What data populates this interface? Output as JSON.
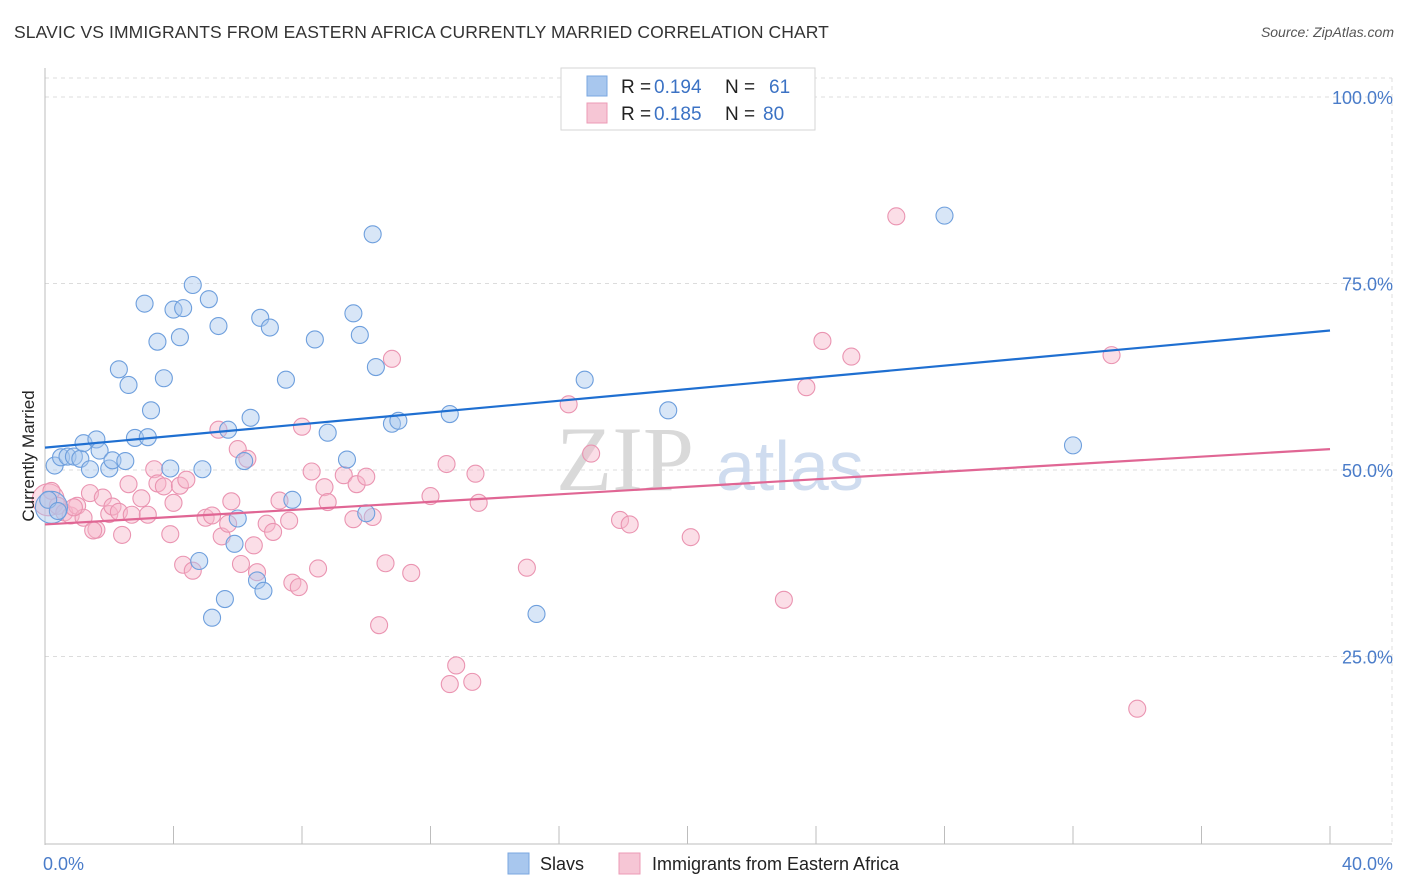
{
  "title": "SLAVIC VS IMMIGRANTS FROM EASTERN AFRICA CURRENTLY MARRIED CORRELATION CHART",
  "source": "Source: ZipAtlas.com",
  "watermark": {
    "zip": "ZIP",
    "atlas": "atlas"
  },
  "colors": {
    "blue": "#1f6fd1",
    "blue_fill": "#a8c7ee",
    "pink": "#e06694",
    "pink_fill": "#f6b6c9",
    "grid": "#dcdcdc",
    "tick_text": "#4a7cc9"
  },
  "legend": {
    "rows": [
      {
        "r_label": "R =",
        "r_value": "0.194",
        "n_label": "N =",
        "n_value": "61",
        "color": "blue"
      },
      {
        "r_label": "R =",
        "r_value": "0.185",
        "n_label": "N =",
        "n_value": "80",
        "color": "pink"
      }
    ]
  },
  "bottom_legend": [
    {
      "label": "Slavs",
      "color": "blue"
    },
    {
      "label": "Immigrants from Eastern Africa",
      "color": "pink"
    }
  ],
  "chart_data": {
    "type": "scatter",
    "title": "SLAVIC VS IMMIGRANTS FROM EASTERN AFRICA CURRENTLY MARRIED CORRELATION CHART",
    "xlabel": "",
    "ylabel": "Currently Married",
    "xlim": [
      0,
      40
    ],
    "ylim": [
      0,
      105
    ],
    "x_tick_labels": [
      "0.0%",
      "40.0%"
    ],
    "y_ticks": [
      25,
      50,
      75,
      100
    ],
    "y_tick_labels": [
      "25.0%",
      "50.0%",
      "75.0%",
      "100.0%"
    ],
    "grid": true,
    "series": [
      {
        "name": "Slavs",
        "color": "blue",
        "trend": [
          [
            0,
            53.0
          ],
          [
            40,
            68.7
          ]
        ],
        "points": [
          [
            0.2,
            45.0
          ],
          [
            0.3,
            50.6
          ],
          [
            0.5,
            51.7
          ],
          [
            0.7,
            51.8
          ],
          [
            0.9,
            51.8
          ],
          [
            1.1,
            51.5
          ],
          [
            1.2,
            53.6
          ],
          [
            1.4,
            50.1
          ],
          [
            1.6,
            54.1
          ],
          [
            1.7,
            52.6
          ],
          [
            2.0,
            50.2
          ],
          [
            2.1,
            51.3
          ],
          [
            2.3,
            63.5
          ],
          [
            2.5,
            51.2
          ],
          [
            2.6,
            61.4
          ],
          [
            2.8,
            54.3
          ],
          [
            3.1,
            72.3
          ],
          [
            3.2,
            54.4
          ],
          [
            3.3,
            58.0
          ],
          [
            3.5,
            67.2
          ],
          [
            3.7,
            62.3
          ],
          [
            3.9,
            50.2
          ],
          [
            4.0,
            71.5
          ],
          [
            4.3,
            71.7
          ],
          [
            4.2,
            67.8
          ],
          [
            4.6,
            74.8
          ],
          [
            4.8,
            37.8
          ],
          [
            4.9,
            50.1
          ],
          [
            5.1,
            72.9
          ],
          [
            5.2,
            30.2
          ],
          [
            5.4,
            69.3
          ],
          [
            5.6,
            32.7
          ],
          [
            5.7,
            55.4
          ],
          [
            5.9,
            40.1
          ],
          [
            6.0,
            43.5
          ],
          [
            6.2,
            51.2
          ],
          [
            6.4,
            57.0
          ],
          [
            6.6,
            35.2
          ],
          [
            6.8,
            33.8
          ],
          [
            6.7,
            70.4
          ],
          [
            7.0,
            69.1
          ],
          [
            7.5,
            62.1
          ],
          [
            7.7,
            46.0
          ],
          [
            8.4,
            67.5
          ],
          [
            8.8,
            55.0
          ],
          [
            9.4,
            51.4
          ],
          [
            9.6,
            71.0
          ],
          [
            9.8,
            68.1
          ],
          [
            10.0,
            44.2
          ],
          [
            10.2,
            81.6
          ],
          [
            10.3,
            63.8
          ],
          [
            10.8,
            56.2
          ],
          [
            11.0,
            56.6
          ],
          [
            12.6,
            57.5
          ],
          [
            15.3,
            30.7
          ],
          [
            16.8,
            62.1
          ],
          [
            19.4,
            58.0
          ],
          [
            28.0,
            84.1
          ],
          [
            32.0,
            53.3
          ],
          [
            0.1,
            46.0
          ],
          [
            0.4,
            44.5
          ]
        ]
      },
      {
        "name": "Immigrants from Eastern Africa",
        "color": "pink",
        "trend": [
          [
            0,
            42.7
          ],
          [
            40,
            52.8
          ]
        ],
        "points": [
          [
            0.1,
            46.0
          ],
          [
            0.4,
            45.2
          ],
          [
            0.6,
            44.3
          ],
          [
            0.8,
            43.9
          ],
          [
            1.0,
            45.2
          ],
          [
            1.2,
            43.6
          ],
          [
            1.4,
            46.9
          ],
          [
            1.6,
            42.0
          ],
          [
            1.8,
            46.3
          ],
          [
            2.0,
            44.1
          ],
          [
            2.1,
            45.1
          ],
          [
            2.3,
            44.4
          ],
          [
            2.4,
            41.3
          ],
          [
            2.6,
            48.1
          ],
          [
            2.7,
            44.0
          ],
          [
            3.0,
            46.2
          ],
          [
            3.2,
            44.0
          ],
          [
            3.4,
            50.1
          ],
          [
            3.5,
            48.2
          ],
          [
            3.7,
            47.8
          ],
          [
            3.9,
            41.4
          ],
          [
            4.0,
            45.6
          ],
          [
            4.2,
            47.9
          ],
          [
            4.3,
            37.3
          ],
          [
            4.4,
            48.7
          ],
          [
            4.6,
            36.5
          ],
          [
            5.0,
            43.6
          ],
          [
            5.2,
            43.9
          ],
          [
            5.4,
            55.4
          ],
          [
            5.5,
            41.1
          ],
          [
            5.7,
            42.8
          ],
          [
            5.8,
            45.8
          ],
          [
            6.0,
            52.8
          ],
          [
            6.1,
            37.4
          ],
          [
            6.3,
            51.5
          ],
          [
            6.5,
            39.9
          ],
          [
            6.6,
            36.3
          ],
          [
            6.9,
            42.8
          ],
          [
            7.1,
            41.7
          ],
          [
            7.3,
            45.9
          ],
          [
            7.6,
            43.2
          ],
          [
            7.7,
            34.9
          ],
          [
            7.9,
            34.3
          ],
          [
            8.0,
            55.8
          ],
          [
            8.3,
            49.8
          ],
          [
            8.5,
            36.8
          ],
          [
            8.7,
            47.7
          ],
          [
            8.8,
            45.7
          ],
          [
            9.3,
            49.3
          ],
          [
            9.6,
            43.4
          ],
          [
            9.7,
            48.1
          ],
          [
            10.0,
            49.1
          ],
          [
            10.2,
            43.7
          ],
          [
            10.4,
            29.2
          ],
          [
            10.6,
            37.5
          ],
          [
            10.8,
            64.9
          ],
          [
            11.4,
            36.2
          ],
          [
            12.0,
            46.5
          ],
          [
            12.5,
            50.8
          ],
          [
            12.6,
            21.3
          ],
          [
            12.8,
            23.8
          ],
          [
            13.3,
            21.6
          ],
          [
            13.4,
            49.5
          ],
          [
            13.5,
            45.6
          ],
          [
            15.0,
            36.9
          ],
          [
            16.3,
            58.8
          ],
          [
            17.0,
            52.2
          ],
          [
            17.9,
            43.3
          ],
          [
            18.2,
            42.7
          ],
          [
            20.1,
            41.0
          ],
          [
            23.0,
            32.6
          ],
          [
            23.7,
            61.1
          ],
          [
            24.2,
            67.3
          ],
          [
            25.1,
            65.2
          ],
          [
            26.5,
            84.0
          ],
          [
            33.2,
            65.4
          ],
          [
            34.0,
            18.0
          ],
          [
            0.2,
            47.2
          ],
          [
            0.9,
            45.0
          ],
          [
            1.5,
            41.9
          ]
        ]
      }
    ]
  }
}
